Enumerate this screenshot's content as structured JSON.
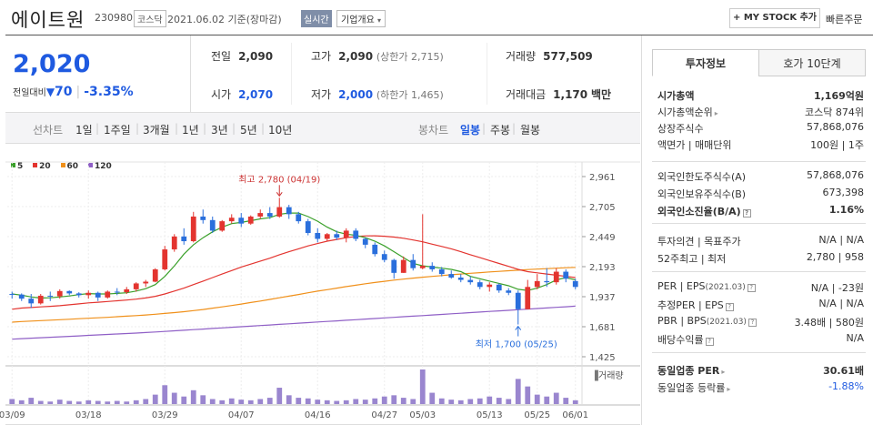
{
  "header": {
    "name": "에이트원",
    "code": "230980",
    "market": "코스닥",
    "date": "2021.06.02 기준(장마감)",
    "realtime": "실시간",
    "company_info": "기업개요",
    "my_stock": "+ MY STOCK 추가",
    "quick_order": "빠른주문"
  },
  "price": {
    "current": "2,020",
    "change_label": "전일대비",
    "change_symbol": "▼",
    "change_value": "70",
    "separator": "|",
    "change_rate": "-3.35%"
  },
  "quote": {
    "prev_close_label": "전일",
    "prev_close": "2,090",
    "open_label": "시가",
    "open": "2,070",
    "high_label": "고가",
    "high": "2,090",
    "upper_limit": "(상한가 2,715)",
    "low_label": "저가",
    "low": "2,000",
    "lower_limit": "(하한가 1,465)",
    "volume_label": "거래량",
    "volume": "577,509",
    "amount_label": "거래대금",
    "amount": "1,170",
    "amount_unit": "백만"
  },
  "toolbar": {
    "line_chart": "선차트",
    "periods": [
      "1일",
      "1주일",
      "3개월",
      "1년",
      "3년",
      "5년",
      "10년"
    ],
    "candle_chart": "봉차트",
    "candle_periods": [
      "일봉",
      "주봉",
      "월봉"
    ],
    "selected_candle": "일봉",
    "divider": "|"
  },
  "legend": [
    {
      "label": "5",
      "color": "#3aa02a"
    },
    {
      "label": "20",
      "color": "#e3342f"
    },
    {
      "label": "60",
      "color": "#f0901a"
    },
    {
      "label": "120",
      "color": "#8f5fc6"
    }
  ],
  "chart_data": {
    "type": "candlestick",
    "y_ticks": [
      "2,961",
      "2,705",
      "2,449",
      "2,193",
      "1,937",
      "1,681",
      "1,425"
    ],
    "x_ticks": [
      "03/09",
      "03/18",
      "03/29",
      "04/07",
      "04/16",
      "04/27",
      "05/03",
      "05/13",
      "05/25",
      "06/01"
    ],
    "ylim": [
      1425,
      2961
    ],
    "annotations": [
      {
        "text": "최고 2,780 (04/19)",
        "value": 2780
      },
      {
        "text": "최저 1,700 (05/25)",
        "value": 1700
      }
    ],
    "volume_label": "거래량",
    "volume_label_prefix": "▐",
    "up_color": "#e3342f",
    "down_color": "#2a6fdc",
    "volume_color": "#9a86cf",
    "ohlc": [
      [
        1960,
        1980,
        1920,
        1955
      ],
      [
        1955,
        1965,
        1900,
        1920
      ],
      [
        1920,
        1960,
        1840,
        1880
      ],
      [
        1880,
        1960,
        1870,
        1945
      ],
      [
        1945,
        1980,
        1900,
        1940
      ],
      [
        1940,
        2000,
        1920,
        1985
      ],
      [
        1985,
        1990,
        1950,
        1965
      ],
      [
        1965,
        1975,
        1930,
        1950
      ],
      [
        1950,
        1990,
        1920,
        1970
      ],
      [
        1970,
        1980,
        1900,
        1930
      ],
      [
        1930,
        1990,
        1920,
        1980
      ],
      [
        1980,
        2010,
        1950,
        1975
      ],
      [
        1975,
        2020,
        1960,
        2000
      ],
      [
        2000,
        2060,
        1980,
        2050
      ],
      [
        2050,
        2080,
        2020,
        2065
      ],
      [
        2065,
        2180,
        2060,
        2170
      ],
      [
        2170,
        2370,
        2160,
        2340
      ],
      [
        2340,
        2470,
        2320,
        2450
      ],
      [
        2450,
        2520,
        2380,
        2410
      ],
      [
        2410,
        2660,
        2400,
        2620
      ],
      [
        2620,
        2680,
        2560,
        2590
      ],
      [
        2590,
        2620,
        2480,
        2500
      ],
      [
        2500,
        2590,
        2490,
        2580
      ],
      [
        2580,
        2640,
        2560,
        2610
      ],
      [
        2610,
        2650,
        2530,
        2560
      ],
      [
        2560,
        2630,
        2550,
        2620
      ],
      [
        2620,
        2680,
        2600,
        2650
      ],
      [
        2650,
        2700,
        2600,
        2620
      ],
      [
        2620,
        2780,
        2610,
        2700
      ],
      [
        2700,
        2720,
        2600,
        2640
      ],
      [
        2640,
        2660,
        2560,
        2580
      ],
      [
        2580,
        2600,
        2460,
        2480
      ],
      [
        2480,
        2520,
        2400,
        2430
      ],
      [
        2430,
        2480,
        2410,
        2470
      ],
      [
        2470,
        2500,
        2420,
        2440
      ],
      [
        2440,
        2520,
        2400,
        2500
      ],
      [
        2500,
        2520,
        2410,
        2430
      ],
      [
        2430,
        2440,
        2350,
        2380
      ],
      [
        2380,
        2400,
        2280,
        2300
      ],
      [
        2300,
        2330,
        2230,
        2250
      ],
      [
        2250,
        2260,
        2090,
        2140
      ],
      [
        2140,
        2280,
        2140,
        2250
      ],
      [
        2250,
        2300,
        2160,
        2180
      ],
      [
        2180,
        2640,
        2170,
        2200
      ],
      [
        2200,
        2230,
        2150,
        2170
      ],
      [
        2170,
        2190,
        2110,
        2130
      ],
      [
        2130,
        2160,
        2090,
        2100
      ],
      [
        2100,
        2130,
        2060,
        2080
      ],
      [
        2080,
        2110,
        2040,
        2060
      ],
      [
        2060,
        2080,
        2000,
        2020
      ],
      [
        2020,
        2060,
        1980,
        2040
      ],
      [
        2040,
        2050,
        1970,
        1990
      ],
      [
        1990,
        2010,
        1950,
        1970
      ],
      [
        1970,
        1990,
        1700,
        1830
      ],
      [
        1830,
        2080,
        1830,
        2020
      ],
      [
        2020,
        2130,
        2000,
        2070
      ],
      [
        2070,
        2180,
        2020,
        2060
      ],
      [
        2060,
        2180,
        2040,
        2150
      ],
      [
        2150,
        2170,
        2060,
        2090
      ],
      [
        2070,
        2090,
        2000,
        2020
      ]
    ],
    "ma": {
      "5": [
        1960,
        1950,
        1935,
        1925,
        1928,
        1935,
        1943,
        1955,
        1963,
        1960,
        1960,
        1965,
        1970,
        1985,
        2005,
        2040,
        2110,
        2200,
        2300,
        2380,
        2440,
        2490,
        2530,
        2560,
        2570,
        2585,
        2600,
        2610,
        2640,
        2650,
        2650,
        2620,
        2580,
        2530,
        2490,
        2470,
        2460,
        2440,
        2410,
        2370,
        2320,
        2270,
        2220,
        2200,
        2190,
        2180,
        2170,
        2150,
        2110,
        2090,
        2070,
        2050,
        2030,
        2000,
        1990,
        2010,
        2040,
        2080,
        2100,
        2080
      ],
      "20": [
        1830,
        1840,
        1845,
        1850,
        1855,
        1860,
        1868,
        1876,
        1884,
        1890,
        1896,
        1902,
        1908,
        1916,
        1926,
        1940,
        1960,
        1985,
        2010,
        2040,
        2070,
        2100,
        2130,
        2160,
        2190,
        2215,
        2240,
        2265,
        2295,
        2320,
        2345,
        2370,
        2390,
        2410,
        2425,
        2440,
        2450,
        2455,
        2456,
        2452,
        2445,
        2435,
        2420,
        2405,
        2385,
        2365,
        2345,
        2320,
        2295,
        2270,
        2245,
        2220,
        2195,
        2170,
        2150,
        2140,
        2130,
        2120,
        2110,
        2100
      ],
      "60": [
        1720,
        1725,
        1729,
        1733,
        1737,
        1741,
        1745,
        1749,
        1753,
        1757,
        1761,
        1766,
        1771,
        1776,
        1781,
        1787,
        1794,
        1801,
        1809,
        1818,
        1828,
        1839,
        1850,
        1862,
        1874,
        1887,
        1900,
        1914,
        1928,
        1942,
        1956,
        1970,
        1984,
        1997,
        2010,
        2023,
        2035,
        2047,
        2058,
        2068,
        2078,
        2087,
        2095,
        2103,
        2110,
        2117,
        2124,
        2130,
        2136,
        2142,
        2148,
        2153,
        2158,
        2163,
        2168,
        2172,
        2176,
        2180,
        2184,
        2187
      ],
      "120": [
        1575,
        1579,
        1583,
        1587,
        1591,
        1595,
        1599,
        1603,
        1607,
        1611,
        1615,
        1619,
        1623,
        1627,
        1631,
        1636,
        1641,
        1646,
        1651,
        1656,
        1661,
        1666,
        1671,
        1676,
        1681,
        1686,
        1691,
        1696,
        1701,
        1706,
        1711,
        1716,
        1721,
        1726,
        1731,
        1736,
        1741,
        1746,
        1751,
        1756,
        1761,
        1766,
        1771,
        1776,
        1781,
        1786,
        1791,
        1796,
        1801,
        1806,
        1811,
        1816,
        1821,
        1826,
        1831,
        1836,
        1841,
        1846,
        1851,
        1856
      ]
    },
    "volume": [
      8,
      6,
      10,
      5,
      4,
      7,
      5,
      4,
      6,
      5,
      4,
      5,
      4,
      6,
      8,
      15,
      30,
      18,
      12,
      22,
      14,
      8,
      6,
      9,
      7,
      6,
      8,
      10,
      26,
      14,
      10,
      9,
      7,
      6,
      5,
      6,
      8,
      7,
      9,
      12,
      14,
      10,
      8,
      55,
      18,
      9,
      7,
      6,
      8,
      9,
      12,
      10,
      8,
      40,
      28,
      15,
      12,
      18,
      10,
      6
    ]
  },
  "info": {
    "tab_invest": "투자정보",
    "tab_hoga": "호가 10단계",
    "market_cap_label": "시가총액",
    "market_cap": "1,169억원",
    "market_cap_rank_label": "시가총액순위",
    "market_cap_rank": "코스닥 874위",
    "shares_label": "상장주식수",
    "shares": "57,868,076",
    "face_label": "액면가 | 매매단위",
    "face": "100원 | 1주",
    "foreign_limit_label": "외국인한도주식수(A)",
    "foreign_limit": "57,868,076",
    "foreign_hold_label": "외국인보유주식수(B)",
    "foreign_hold": "673,398",
    "foreign_rate_label": "외국인소진율(B/A)",
    "foreign_rate": "1.16%",
    "opinion_label": "투자의견 | 목표주가",
    "opinion": "N/A | N/A",
    "week52_label": "52주최고 | 최저",
    "week52": "2,780 | 958",
    "per_label": "PER | EPS",
    "per_date": "(2021.03)",
    "per": "N/A | -23원",
    "est_per_label": "추정PER | EPS",
    "est_per": "N/A | N/A",
    "pbr_label": "PBR | BPS",
    "pbr_date": "(2021.03)",
    "pbr": "3.48배 | 580원",
    "dividend_label": "배당수익률",
    "dividend": "N/A",
    "industry_per_label": "동일업종 PER",
    "industry_per": "30.61배",
    "industry_rate_label": "동일업종 등락률",
    "industry_rate": "-1.88%",
    "help": "?",
    "arrow": "▸"
  }
}
